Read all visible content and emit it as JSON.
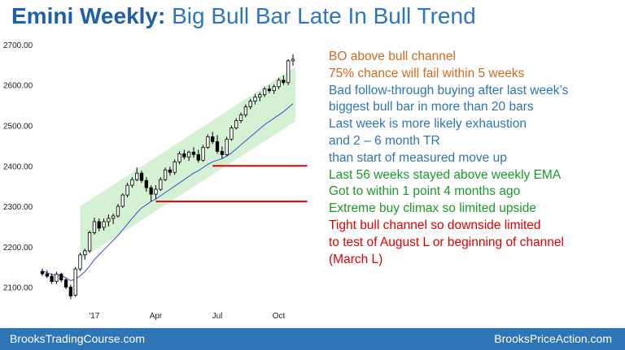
{
  "title": {
    "bold": "Emini Weekly:",
    "rest": "Big Bull Bar Late In Bull Trend"
  },
  "notes": [
    {
      "text": "BO above bull channel",
      "color": "#d2691e"
    },
    {
      "text": "75% chance will fail within 5 weeks",
      "color": "#d2691e"
    },
    {
      "text": "Bad follow-through buying after last week’s",
      "color": "#2e75b6"
    },
    {
      "text": "biggest bull bar in more than 20 bars",
      "color": "#2e75b6"
    },
    {
      "text": "Last week is more likely exhaustion",
      "color": "#2e75b6"
    },
    {
      "text": "and 2 – 6 month TR",
      "color": "#2e75b6"
    },
    {
      "text": "than start of measured move up",
      "color": "#2e75b6"
    },
    {
      "text": "Last 56 weeks stayed above weekly EMA",
      "color": "#1a9a2a"
    },
    {
      "text": "Got to within 1 point 4 months ago",
      "color": "#1a9a2a"
    },
    {
      "text": "Extreme buy climax so limited upside",
      "color": "#1a9a2a"
    },
    {
      "text": "Tight bull channel so downside limited",
      "color": "#e00000"
    },
    {
      "text": "to test of August L or beginning of channel",
      "color": "#e00000"
    },
    {
      "text": "(March L)",
      "color": "#e00000"
    }
  ],
  "footer": {
    "left": "BrooksTradingCourse.com",
    "right": "BrooksPriceAction.com"
  },
  "chart_data": {
    "type": "candlestick",
    "y_ticks": [
      "2700.00",
      "2600.00",
      "2500.00",
      "2400.00",
      "2300.00",
      "2200.00",
      "2100.00"
    ],
    "y_tick_values": [
      2700,
      2600,
      2500,
      2400,
      2300,
      2200,
      2100
    ],
    "ylim": [
      2055,
      2730
    ],
    "x_ticks": [
      "'17",
      "Apr",
      "Jul",
      "Oct"
    ],
    "x_tick_index": [
      11,
      24,
      37,
      50
    ],
    "colors": {
      "bull": "#ffffff",
      "bear": "#000000",
      "ema": "#3a4fd0",
      "channel": "#cdeecd",
      "support": "#e00000"
    },
    "candles": [
      [
        2139,
        2146,
        2128,
        2133
      ],
      [
        2133,
        2142,
        2122,
        2127
      ],
      [
        2127,
        2134,
        2108,
        2114
      ],
      [
        2114,
        2138,
        2108,
        2132
      ],
      [
        2132,
        2136,
        2112,
        2118
      ],
      [
        2118,
        2122,
        2095,
        2100
      ],
      [
        2100,
        2106,
        2070,
        2078
      ],
      [
        2080,
        2150,
        2076,
        2145
      ],
      [
        2145,
        2185,
        2140,
        2180
      ],
      [
        2180,
        2195,
        2168,
        2190
      ],
      [
        2190,
        2240,
        2185,
        2235
      ],
      [
        2235,
        2272,
        2230,
        2262
      ],
      [
        2262,
        2270,
        2238,
        2246
      ],
      [
        2248,
        2270,
        2240,
        2262
      ],
      [
        2262,
        2280,
        2250,
        2270
      ],
      [
        2270,
        2282,
        2256,
        2276
      ],
      [
        2276,
        2306,
        2272,
        2300
      ],
      [
        2300,
        2332,
        2296,
        2328
      ],
      [
        2328,
        2358,
        2322,
        2352
      ],
      [
        2352,
        2372,
        2346,
        2366
      ],
      [
        2366,
        2396,
        2362,
        2382
      ],
      [
        2382,
        2388,
        2358,
        2364
      ],
      [
        2364,
        2372,
        2336,
        2346
      ],
      [
        2346,
        2352,
        2312,
        2330
      ],
      [
        2330,
        2352,
        2318,
        2342
      ],
      [
        2342,
        2372,
        2338,
        2366
      ],
      [
        2366,
        2396,
        2362,
        2390
      ],
      [
        2390,
        2398,
        2376,
        2384
      ],
      [
        2384,
        2416,
        2378,
        2410
      ],
      [
        2410,
        2436,
        2404,
        2430
      ],
      [
        2430,
        2440,
        2416,
        2422
      ],
      [
        2422,
        2438,
        2412,
        2434
      ],
      [
        2434,
        2446,
        2420,
        2428
      ],
      [
        2428,
        2440,
        2408,
        2414
      ],
      [
        2414,
        2452,
        2410,
        2446
      ],
      [
        2446,
        2478,
        2442,
        2472
      ],
      [
        2472,
        2484,
        2454,
        2460
      ],
      [
        2460,
        2476,
        2430,
        2436
      ],
      [
        2436,
        2448,
        2418,
        2428
      ],
      [
        2428,
        2472,
        2424,
        2466
      ],
      [
        2466,
        2500,
        2462,
        2494
      ],
      [
        2494,
        2518,
        2490,
        2512
      ],
      [
        2512,
        2532,
        2506,
        2526
      ],
      [
        2526,
        2552,
        2520,
        2546
      ],
      [
        2546,
        2566,
        2540,
        2560
      ],
      [
        2560,
        2578,
        2552,
        2570
      ],
      [
        2570,
        2582,
        2560,
        2576
      ],
      [
        2576,
        2596,
        2570,
        2590
      ],
      [
        2590,
        2600,
        2580,
        2586
      ],
      [
        2586,
        2602,
        2578,
        2596
      ],
      [
        2596,
        2618,
        2590,
        2612
      ],
      [
        2612,
        2624,
        2600,
        2606
      ],
      [
        2606,
        2664,
        2600,
        2660
      ],
      [
        2660,
        2676,
        2648,
        2664
      ]
    ],
    "ema": [
      2140,
      2136,
      2131,
      2130,
      2129,
      2123,
      2116,
      2120,
      2128,
      2138,
      2152,
      2168,
      2180,
      2192,
      2204,
      2216,
      2228,
      2242,
      2256,
      2270,
      2284,
      2296,
      2304,
      2312,
      2318,
      2326,
      2334,
      2342,
      2350,
      2358,
      2366,
      2374,
      2382,
      2388,
      2396,
      2404,
      2410,
      2414,
      2418,
      2424,
      2432,
      2442,
      2452,
      2462,
      2472,
      2482,
      2492,
      2502,
      2510,
      2518,
      2526,
      2534,
      2544,
      2554
    ],
    "channel": {
      "x_start": 8,
      "x_end": 53.5,
      "lower": [
        2168,
        2510
      ],
      "upper": [
        2300,
        2645
      ]
    },
    "support_lines": [
      {
        "value": 2400,
        "from_index": 36,
        "to_index": 56
      },
      {
        "value": 2312,
        "from_index": 24,
        "to_index": 56
      }
    ]
  }
}
